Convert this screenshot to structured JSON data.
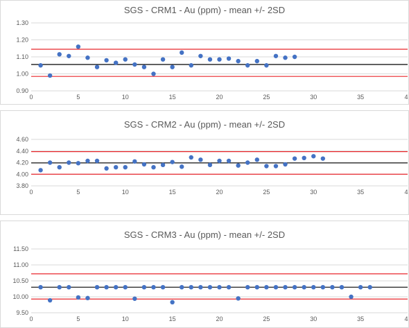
{
  "colors": {
    "point": "#4472c4",
    "limit": "#e8262b",
    "mean": "#000000",
    "grid": "#d9d9d9",
    "text": "#595959"
  },
  "chart_data": [
    {
      "type": "scatter",
      "title": "SGS - CRM1 - Au (ppm) - mean +/- 2SD",
      "xlim": [
        0,
        40
      ],
      "ylim": [
        0.9,
        1.3
      ],
      "xticks": [
        "0",
        "5",
        "10",
        "15",
        "20",
        "25",
        "30",
        "35",
        "4"
      ],
      "yticks": [
        "0.90",
        "1.00",
        "1.10",
        "1.20",
        "1.30"
      ],
      "mean": 1.055,
      "upper_limit": 1.145,
      "lower_limit": 0.985,
      "x": [
        1,
        2,
        3,
        4,
        5,
        6,
        7,
        8,
        9,
        10,
        11,
        12,
        13,
        14,
        15,
        16,
        17,
        18,
        19,
        20,
        21,
        22,
        23,
        24,
        25,
        26,
        27,
        28
      ],
      "y": [
        1.05,
        0.99,
        1.115,
        1.105,
        1.16,
        1.095,
        1.04,
        1.08,
        1.065,
        1.085,
        1.055,
        1.04,
        1.0,
        1.085,
        1.04,
        1.125,
        1.05,
        1.105,
        1.085,
        1.085,
        1.09,
        1.075,
        1.05,
        1.075,
        1.05,
        1.105,
        1.095,
        1.1
      ]
    },
    {
      "type": "scatter",
      "title": "SGS - CRM2 - Au (ppm) - mean +/- 2SD",
      "xlim": [
        0,
        40
      ],
      "ylim": [
        3.8,
        4.6
      ],
      "xticks": [
        "0",
        "5",
        "10",
        "15",
        "20",
        "25",
        "30",
        "35",
        "4"
      ],
      "yticks": [
        "3.80",
        "4.00",
        "4.20",
        "4.40",
        "4.60"
      ],
      "mean": 4.195,
      "upper_limit": 4.39,
      "lower_limit": 4.0,
      "x": [
        1,
        2,
        3,
        4,
        5,
        6,
        7,
        8,
        9,
        10,
        11,
        12,
        13,
        14,
        15,
        16,
        17,
        18,
        19,
        20,
        21,
        22,
        23,
        24,
        25,
        26,
        27,
        28,
        29,
        30,
        31
      ],
      "y": [
        4.07,
        4.2,
        4.12,
        4.2,
        4.19,
        4.23,
        4.23,
        4.1,
        4.12,
        4.12,
        4.22,
        4.17,
        4.12,
        4.16,
        4.21,
        4.13,
        4.29,
        4.25,
        4.16,
        4.23,
        4.23,
        4.15,
        4.2,
        4.25,
        4.14,
        4.14,
        4.17,
        4.27,
        4.28,
        4.31,
        4.27
      ]
    },
    {
      "type": "scatter",
      "title": "SGS - CRM3 - Au (ppm) - mean +/- 2SD",
      "xlim": [
        0,
        40
      ],
      "ylim": [
        9.5,
        11.5
      ],
      "xticks": [
        "0",
        "5",
        "10",
        "15",
        "20",
        "25",
        "30",
        "35",
        "4"
      ],
      "yticks": [
        "9.50",
        "10.00",
        "10.50",
        "11.00",
        "11.50"
      ],
      "mean": 10.3,
      "upper_limit": 10.72,
      "lower_limit": 9.93,
      "x": [
        1,
        2,
        3,
        4,
        5,
        6,
        7,
        8,
        9,
        10,
        11,
        12,
        13,
        14,
        15,
        16,
        17,
        18,
        19,
        20,
        21,
        22,
        23,
        24,
        25,
        26,
        27,
        28,
        29,
        30,
        31,
        32,
        33,
        34,
        35,
        36
      ],
      "y": [
        10.3,
        9.89,
        10.3,
        10.3,
        9.98,
        9.96,
        10.3,
        10.3,
        10.3,
        10.3,
        9.94,
        10.3,
        10.3,
        10.3,
        9.83,
        10.3,
        10.3,
        10.3,
        10.3,
        10.3,
        10.3,
        9.95,
        10.3,
        10.3,
        10.3,
        10.3,
        10.3,
        10.3,
        10.3,
        10.3,
        10.3,
        10.3,
        10.3,
        10.0,
        10.3,
        10.3
      ]
    }
  ]
}
